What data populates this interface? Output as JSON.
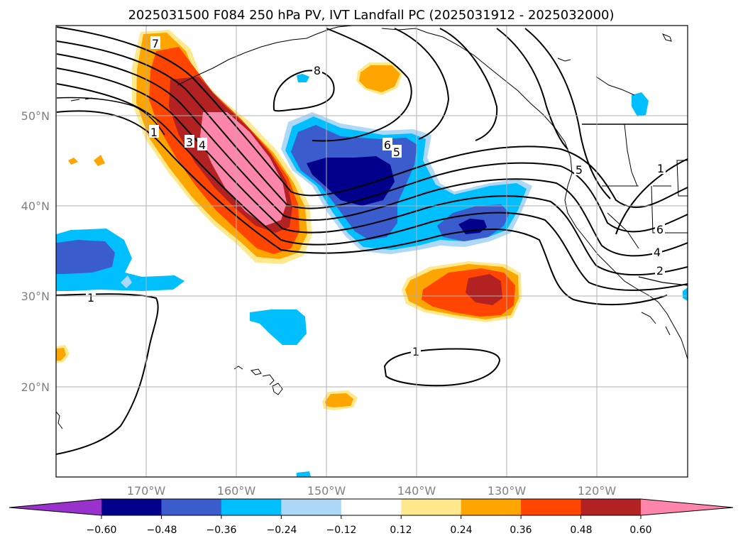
{
  "title": "2025031500 F084 250 hPa PV, IVT Landfall PC (2025031912 - 2025032000)",
  "map": {
    "lon_range": [
      -180,
      -110
    ],
    "lat_range": [
      10,
      60
    ],
    "lon_ticks": [
      "170°W",
      "160°W",
      "150°W",
      "140°W",
      "130°W",
      "120°W"
    ],
    "lat_ticks": [
      "50°N",
      "40°N",
      "30°N",
      "20°N"
    ],
    "grid": true
  },
  "contour_labels": [
    "7",
    "1",
    "3",
    "4",
    "8",
    "6",
    "5",
    "5",
    "1",
    "6",
    "4",
    "2",
    "1",
    "1"
  ],
  "colorbar": {
    "ticks": [
      "−0.60",
      "−0.48",
      "−0.36",
      "−0.24",
      "−0.12",
      "0.12",
      "0.24",
      "0.36",
      "0.48",
      "0.60"
    ],
    "colors": [
      "#9932cc",
      "#00008b",
      "#3a5ccc",
      "#00bfff",
      "#add8f8",
      "#ffffff",
      "#ffe98c",
      "#ffa500",
      "#ff4500",
      "#b22222",
      "#ff85ab"
    ],
    "extend": "both"
  }
}
